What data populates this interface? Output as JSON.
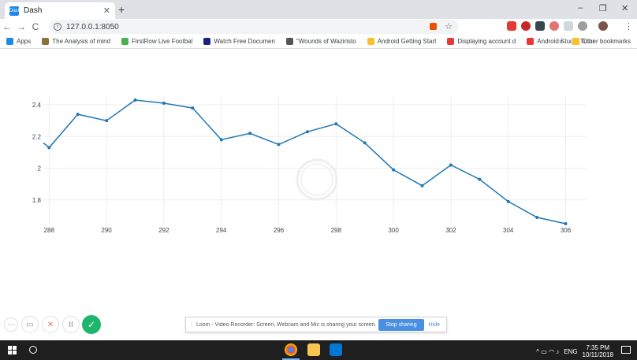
{
  "tab": {
    "title": "Dash",
    "favicon_text": "Dash"
  },
  "new_tab_label": "+",
  "window_controls": {
    "minimize": "–",
    "maximize": "❐",
    "close": "✕"
  },
  "toolbar": {
    "back": "←",
    "forward": "→",
    "reload": "C",
    "url": "127.0.0.1:8050",
    "star": "☆",
    "menu": "⋮"
  },
  "bookmarks": {
    "apps": "Apps",
    "items": [
      {
        "label": "The Analysis of mind",
        "color": "#8d6e3f"
      },
      {
        "label": "FirstRow Live Footbal",
        "color": "#4caf50"
      },
      {
        "label": "Watch Free Documen",
        "color": "#1a237e"
      },
      {
        "label": "\"Wounds of Waziristo",
        "color": "#555555"
      },
      {
        "label": "Android Getting Start",
        "color": "#fbc02d"
      },
      {
        "label": "Displaying account d",
        "color": "#e53935"
      },
      {
        "label": "Android Studio Tutor",
        "color": "#e53935"
      }
    ],
    "overflow": "»",
    "other": "Other bookmarks"
  },
  "chart_data": {
    "type": "line",
    "x": [
      287.8,
      288,
      289,
      290,
      291,
      292,
      293,
      294,
      295,
      296,
      297,
      298,
      299,
      300,
      301,
      302,
      303,
      304,
      305,
      306
    ],
    "y": [
      2.16,
      2.13,
      2.34,
      2.3,
      2.43,
      2.41,
      2.38,
      2.18,
      2.22,
      2.15,
      2.23,
      2.28,
      2.16,
      1.99,
      1.89,
      2.02,
      1.93,
      1.79,
      1.69,
      1.65
    ],
    "xticks": [
      "288",
      "290",
      "292",
      "294",
      "296",
      "298",
      "300",
      "302",
      "304",
      "306"
    ],
    "yticks": [
      "1.8",
      "2",
      "2.2",
      "2.4"
    ],
    "xlim": [
      287.8,
      306.7
    ],
    "ylim": [
      1.65,
      2.43
    ],
    "line_color": "#1f77b4",
    "grid": true,
    "title": "",
    "xlabel": "",
    "ylabel": ""
  },
  "recorder": {
    "more": "···",
    "camera": "▭",
    "cancel": "✕",
    "pause": "II",
    "done": "✓"
  },
  "loom": {
    "grip": "⁞",
    "message": "Loom - Video Recorder: Screen, Webcam and Mic is sharing your screen.",
    "stop": "Stop sharing",
    "hide": "Hide"
  },
  "taskbar": {
    "lang": "ENG",
    "time": "7:35 PM",
    "date": "10/11/2018",
    "tray_icons": "^ ▭ ◠ ♪"
  }
}
